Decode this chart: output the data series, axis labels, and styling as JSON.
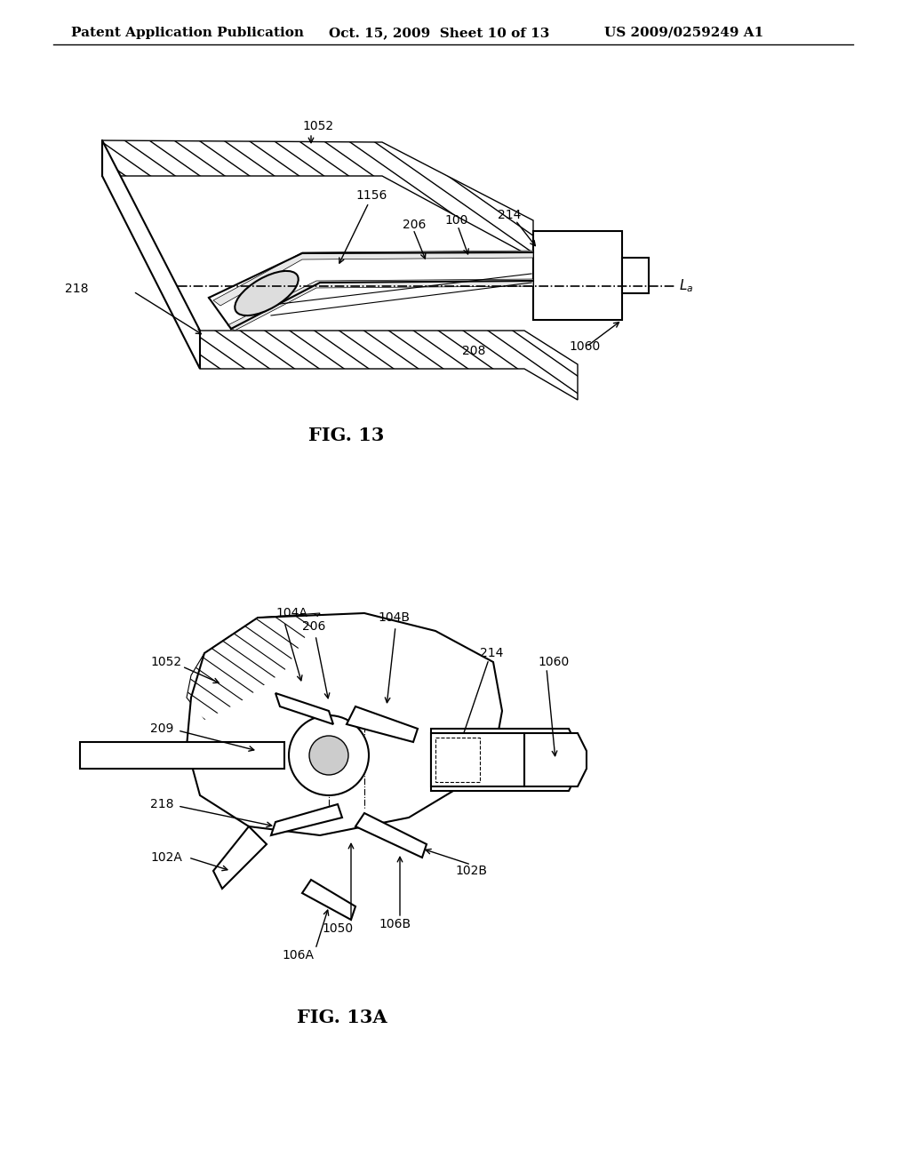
{
  "header_left": "Patent Application Publication",
  "header_mid": "Oct. 15, 2009  Sheet 10 of 13",
  "header_right": "US 2009/0259249 A1",
  "fig13_label": "FIG. 13",
  "fig13a_label": "FIG. 13A",
  "bg_color": "#ffffff",
  "line_color": "#000000",
  "hatch_color": "#000000",
  "font_size_header": 11,
  "font_size_label": 12,
  "font_size_fig": 14,
  "font_size_anno": 10
}
